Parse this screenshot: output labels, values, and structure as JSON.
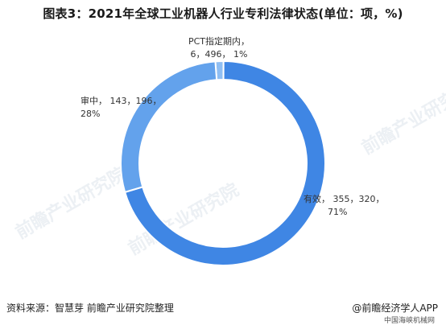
{
  "title": "图表3：2021年全球工业机器人行业专利法律状态(单位：项，%)",
  "chart_data": {
    "type": "pie",
    "title": "图表3：2021年全球工业机器人行业专利法律状态(单位：项，%)",
    "slices": [
      {
        "name": "有效",
        "value": 355320,
        "percent": 71,
        "color": "#3f86e4",
        "label_lines": [
          "有效， 355，320，",
          "71%"
        ]
      },
      {
        "name": "审中",
        "value": 143196,
        "percent": 28,
        "color": "#63a2ec",
        "label_lines": [
          "审中， 143，196，",
          "28%"
        ]
      },
      {
        "name": "PCT指定期内",
        "value": 6496,
        "percent": 1,
        "color": "#8fbef3",
        "label_lines": [
          "PCT指定期内，",
          "6，496， 1%"
        ]
      }
    ]
  },
  "footer": {
    "source": "资料来源：智慧芽 前瞻产业研究院整理",
    "brand": "@前瞻经济学人APP",
    "sub_brand": "中国海峡机械网"
  },
  "watermark": {
    "text": "前瞻产业研究院"
  }
}
